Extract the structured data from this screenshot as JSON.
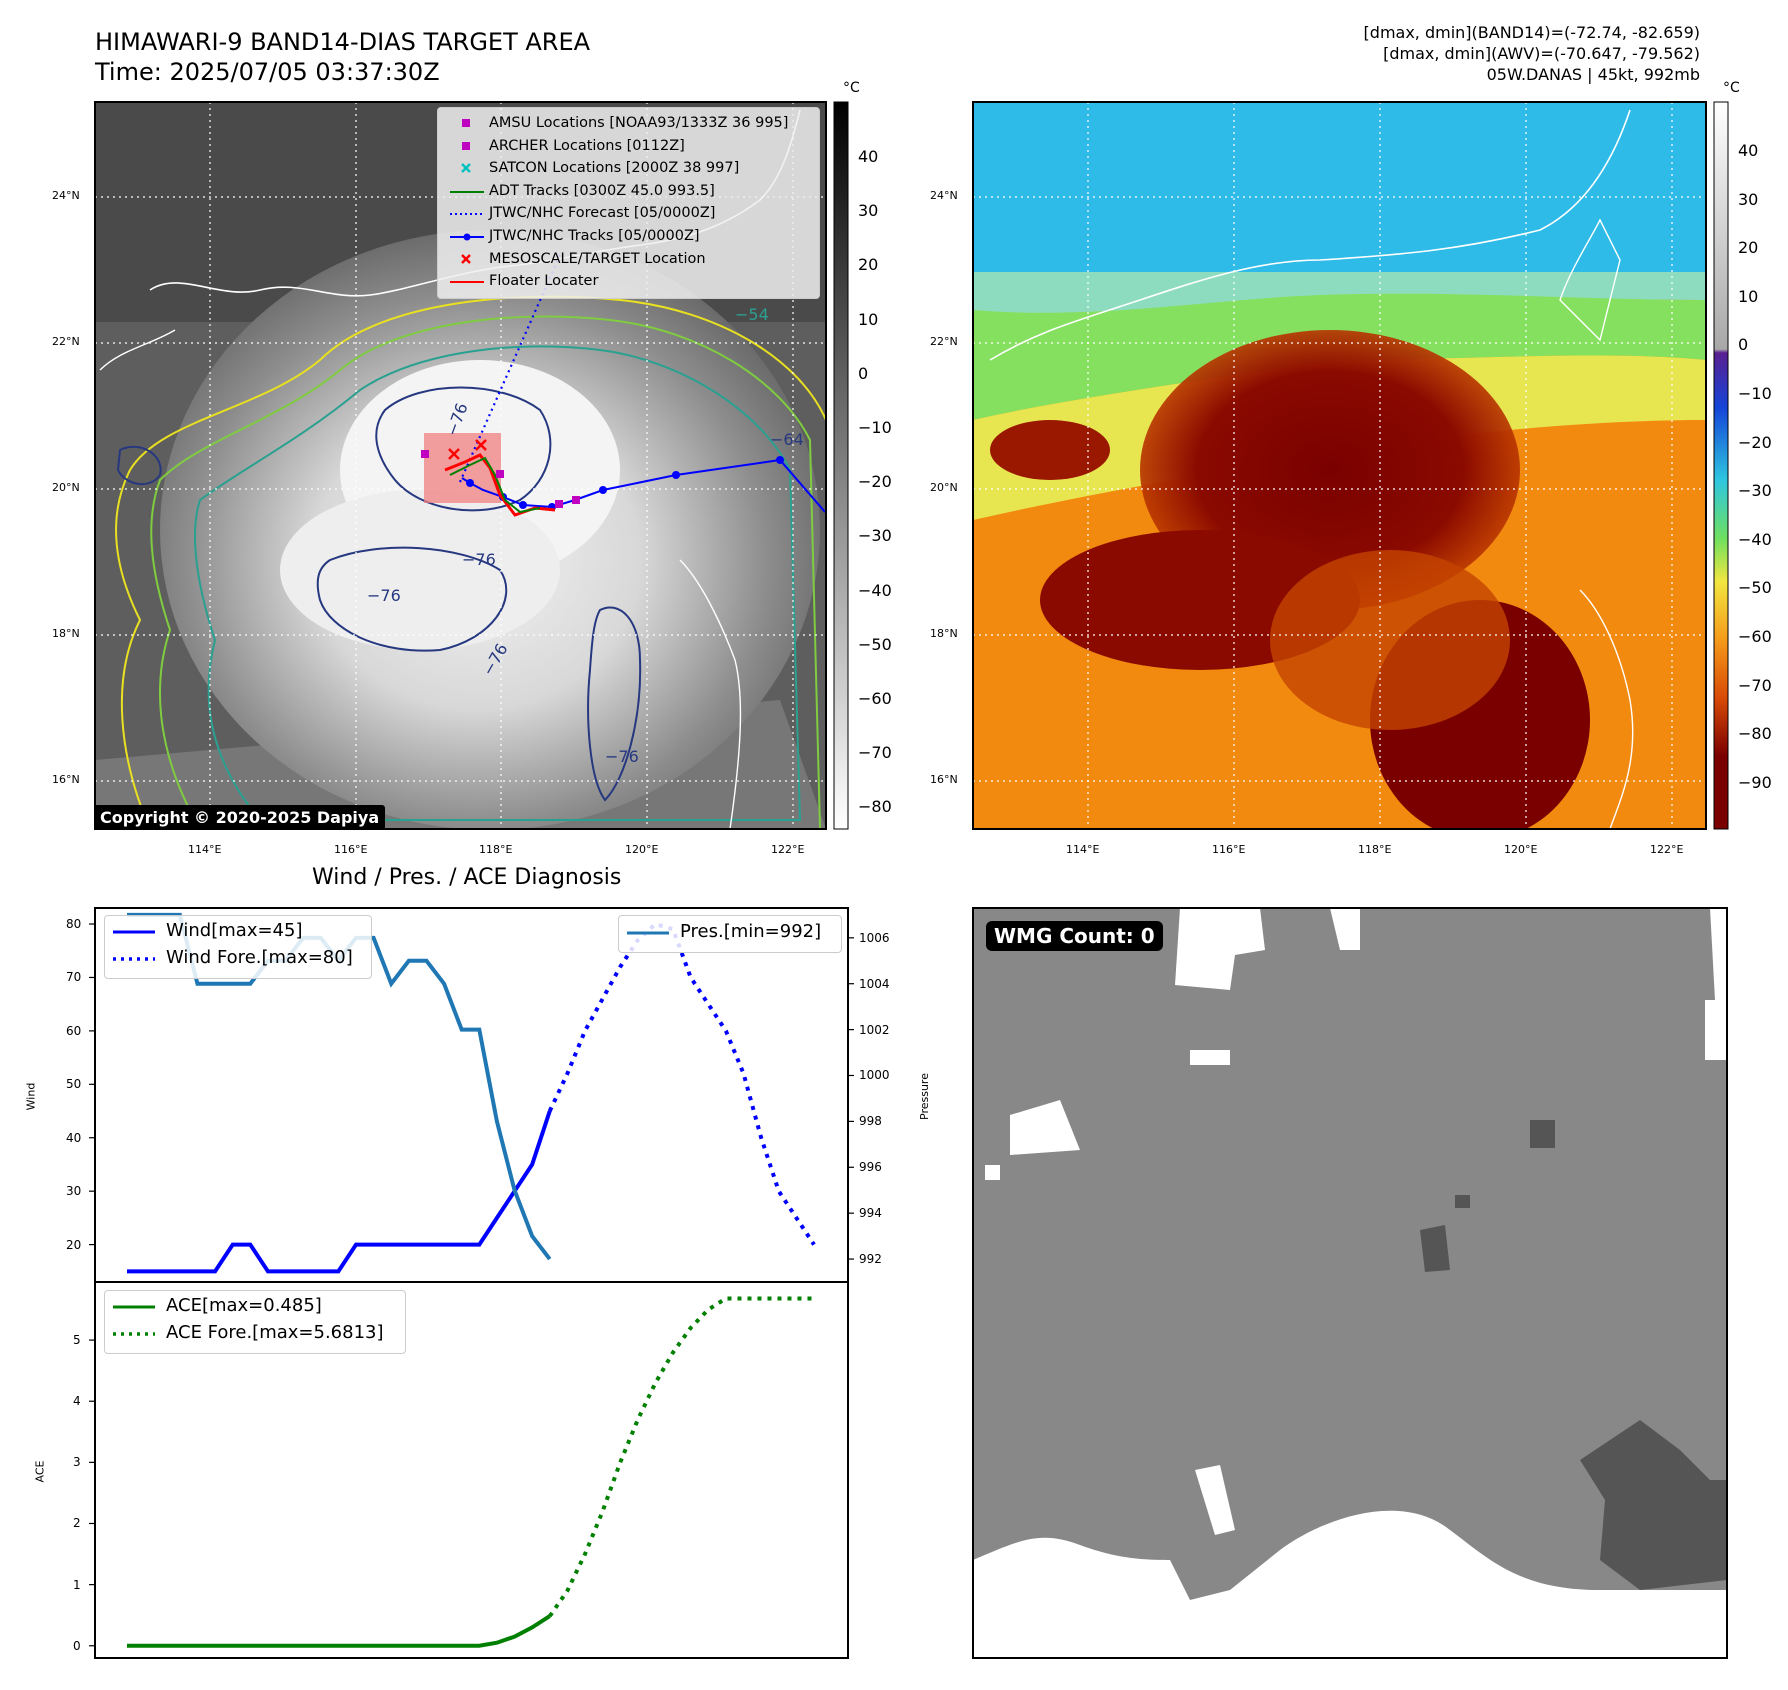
{
  "header": {
    "title_line1": "HIMAWARI-9 BAND14-DIAS TARGET AREA",
    "title_line2": "Time: 2025/07/05 03:37:30Z",
    "info_line1": "[dmax, dmin](BAND14)=(-72.74, -82.659)",
    "info_line2": "[dmax, dmin](AWV)=(-70.647, -79.562)",
    "info_line3": "05W.DANAS | 45kt, 992mb"
  },
  "copyright": "Copyright © 2020-2025 Dapiya",
  "map": {
    "lat_labels": [
      "24°N",
      "22°N",
      "20°N",
      "18°N",
      "16°N"
    ],
    "lon_labels": [
      "114°E",
      "116°E",
      "118°E",
      "120°E",
      "122°E"
    ],
    "contour_labels": [
      "−76",
      "−76",
      "−76",
      "−76",
      "−54",
      "−64",
      "−76"
    ],
    "legend": [
      {
        "label": "AMSU Locations [NOAA93/1333Z 36 995]",
        "marker": "square",
        "color": "#c000c0"
      },
      {
        "label": "ARCHER Locations [0112Z]",
        "marker": "square",
        "color": "#c000c0"
      },
      {
        "label": "SATCON Locations [2000Z 38 997]",
        "marker": "x",
        "color": "#00c0c0"
      },
      {
        "label": "ADT Tracks [0300Z 45.0 993.5]",
        "marker": "line",
        "color": "#008000"
      },
      {
        "label": "JTWC/NHC Forecast [05/0000Z]",
        "marker": "dotted",
        "color": "#0000ff"
      },
      {
        "label": "JTWC/NHC Tracks [05/0000Z]",
        "marker": "line-dot",
        "color": "#0000ff"
      },
      {
        "label": "MESOSCALE/TARGET Location",
        "marker": "x",
        "color": "#ff0000"
      },
      {
        "label": "Floater Locater",
        "marker": "line",
        "color": "#ff0000"
      }
    ]
  },
  "colorbar_left": {
    "unit": "°C",
    "ticks": [
      "40",
      "30",
      "20",
      "10",
      "0",
      "−10",
      "−20",
      "−30",
      "−40",
      "−50",
      "−60",
      "−70",
      "−80"
    ]
  },
  "colorbar_right": {
    "unit": "°C",
    "ticks": [
      "40",
      "30",
      "20",
      "10",
      "0",
      "−10",
      "−20",
      "−30",
      "−40",
      "−50",
      "−60",
      "−70",
      "−80",
      "−90"
    ]
  },
  "wmg_label": "WMG Count: 0",
  "chart_data": [
    {
      "type": "line",
      "title": "Wind / Pres. / ACE Diagnosis",
      "ylabel": "Wind",
      "ylabel_right": "Pressure",
      "ylim": [
        13,
        83
      ],
      "ylim_right": [
        991,
        1007.3
      ],
      "yticks": [
        20,
        30,
        40,
        50,
        60,
        70,
        80
      ],
      "yticks_right": [
        992,
        994,
        996,
        998,
        1000,
        1002,
        1004,
        1006
      ],
      "x": [
        0,
        1,
        2,
        3,
        4,
        5,
        6,
        7,
        8,
        9,
        10,
        11,
        12,
        13,
        14,
        15,
        16,
        17,
        18,
        19,
        20,
        21,
        22,
        23,
        24,
        25,
        26,
        27,
        28,
        29,
        30,
        31,
        32,
        33,
        34,
        35,
        36,
        37,
        38,
        39
      ],
      "series": [
        {
          "name": "Wind[max=45]",
          "style": "solid",
          "color": "#0000ff",
          "axis": "left",
          "x": [
            0,
            1,
            2,
            3,
            4,
            5,
            6,
            7,
            8,
            9,
            10,
            11,
            12,
            13,
            14,
            15,
            16,
            17,
            18,
            19,
            20,
            21,
            22,
            23,
            24
          ],
          "values": [
            15,
            15,
            15,
            15,
            15,
            15,
            20,
            20,
            15,
            15,
            15,
            15,
            15,
            20,
            20,
            20,
            20,
            20,
            20,
            20,
            20,
            25,
            30,
            35,
            45
          ]
        },
        {
          "name": "Wind Fore.[max=80]",
          "style": "dotted",
          "color": "#0000ff",
          "axis": "left",
          "x": [
            24,
            25,
            26,
            27,
            28,
            29,
            30,
            31,
            32,
            33,
            34,
            35,
            36,
            37,
            38,
            39
          ],
          "values": [
            45,
            52,
            60,
            66,
            72,
            77,
            80,
            79,
            70,
            65,
            60,
            52,
            40,
            30,
            25,
            20
          ]
        },
        {
          "name": "Pres.[min=992]",
          "style": "solid",
          "color": "#1f77b4",
          "axis": "right",
          "x": [
            0,
            1,
            2,
            3,
            4,
            5,
            6,
            7,
            8,
            9,
            10,
            11,
            12,
            13,
            14,
            15,
            16,
            17,
            18,
            19,
            20,
            21,
            22,
            23,
            24
          ],
          "values": [
            1007,
            1007,
            1007,
            1007,
            1004,
            1004,
            1004,
            1004,
            1005,
            1005,
            1006,
            1006,
            1005,
            1006,
            1006,
            1004,
            1005,
            1005,
            1004,
            1002,
            1002,
            998,
            995,
            993,
            992
          ]
        }
      ]
    },
    {
      "type": "line",
      "ylabel": "ACE",
      "ylim": [
        -0.2,
        5.95
      ],
      "yticks": [
        0,
        1,
        2,
        3,
        4,
        5
      ],
      "series": [
        {
          "name": "ACE[max=0.485]",
          "style": "solid",
          "color": "#008000",
          "x": [
            0,
            4,
            8,
            12,
            16,
            20,
            21,
            22,
            23,
            24
          ],
          "values": [
            0,
            0,
            0,
            0,
            0,
            0,
            0.05,
            0.15,
            0.3,
            0.485
          ]
        },
        {
          "name": "ACE Fore.[max=5.6813]",
          "style": "dotted",
          "color": "#008000",
          "x": [
            24,
            25,
            26,
            27,
            28,
            29,
            30,
            31,
            32,
            33,
            34,
            35,
            36,
            37,
            38,
            39
          ],
          "values": [
            0.485,
            0.9,
            1.5,
            2.2,
            3.0,
            3.7,
            4.3,
            4.8,
            5.2,
            5.5,
            5.68,
            5.68,
            5.68,
            5.68,
            5.68,
            5.68
          ]
        }
      ]
    }
  ]
}
